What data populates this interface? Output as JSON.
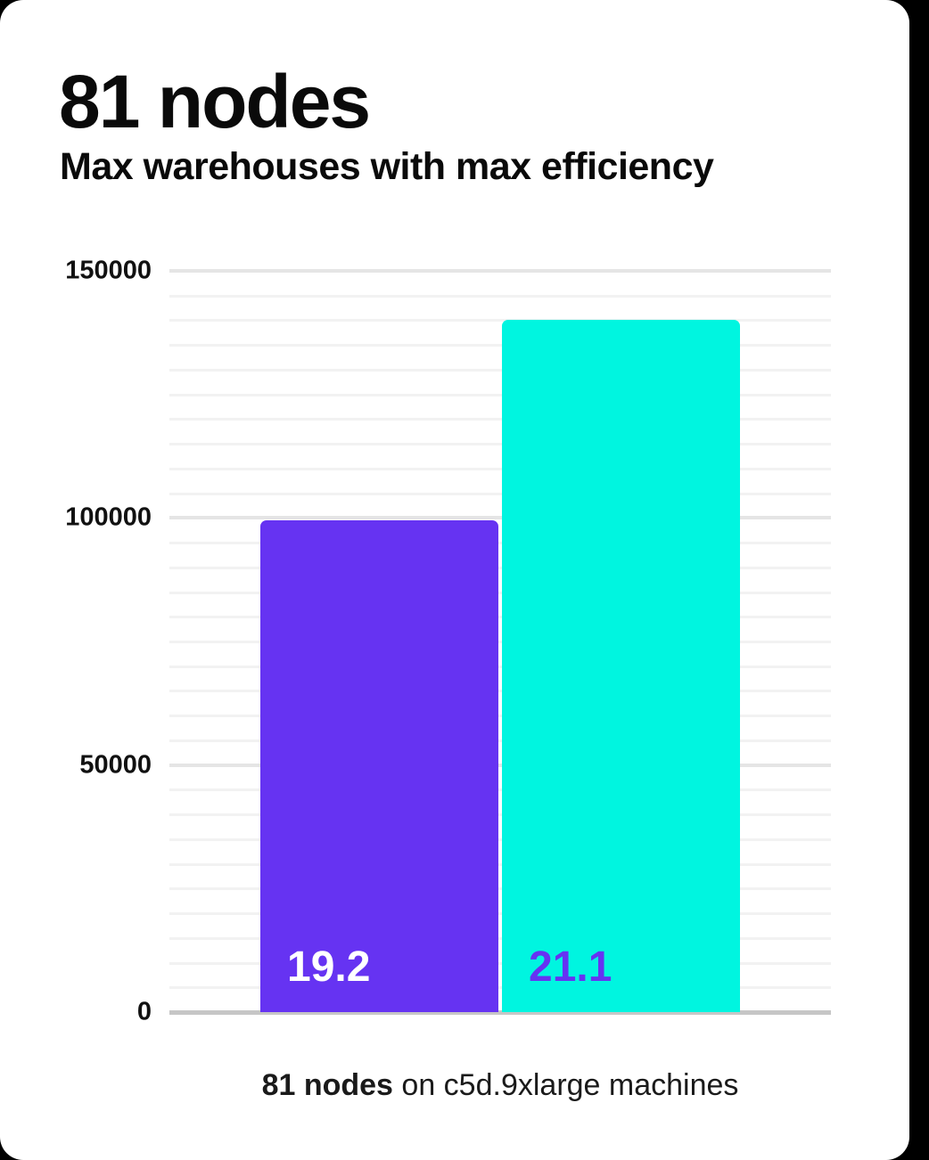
{
  "header": {
    "title": "81 nodes",
    "subtitle": "Max warehouses with max efficiency"
  },
  "caption": {
    "bold": "81 nodes",
    "rest": " on c5d.9xlarge machines"
  },
  "colors": {
    "page_background": "#000000",
    "card_background": "#ffffff",
    "bar_purple": "#6633f2",
    "bar_cyan": "#00f5e0",
    "label_on_purple": "#ffffff",
    "label_on_cyan": "#6633f2",
    "grid_minor": "#f2f2f2",
    "grid_major": "#e5e5e5",
    "axis_line": "#c6c6c6",
    "text": "#0a0a0a"
  },
  "chart_data": {
    "type": "bar",
    "title": "81 nodes",
    "subtitle": "Max warehouses with max efficiency",
    "categories": [
      "19.2",
      "21.1"
    ],
    "values": [
      99500,
      140000
    ],
    "bar_labels": [
      "19.2",
      "21.1"
    ],
    "bar_colors": [
      "#6633f2",
      "#00f5e0"
    ],
    "bar_label_colors": [
      "#ffffff",
      "#6633f2"
    ],
    "ylim": [
      0,
      150000
    ],
    "yticks": [
      0,
      50000,
      100000,
      150000
    ],
    "ytick_labels": [
      "0",
      "50000",
      "100000",
      "150000"
    ],
    "minor_gridline_step": 5000,
    "major_gridline_step": 50000,
    "grid": "horizontal",
    "legend": "none",
    "xlabel": "",
    "ylabel": "",
    "caption": "81 nodes on c5d.9xlarge machines"
  }
}
